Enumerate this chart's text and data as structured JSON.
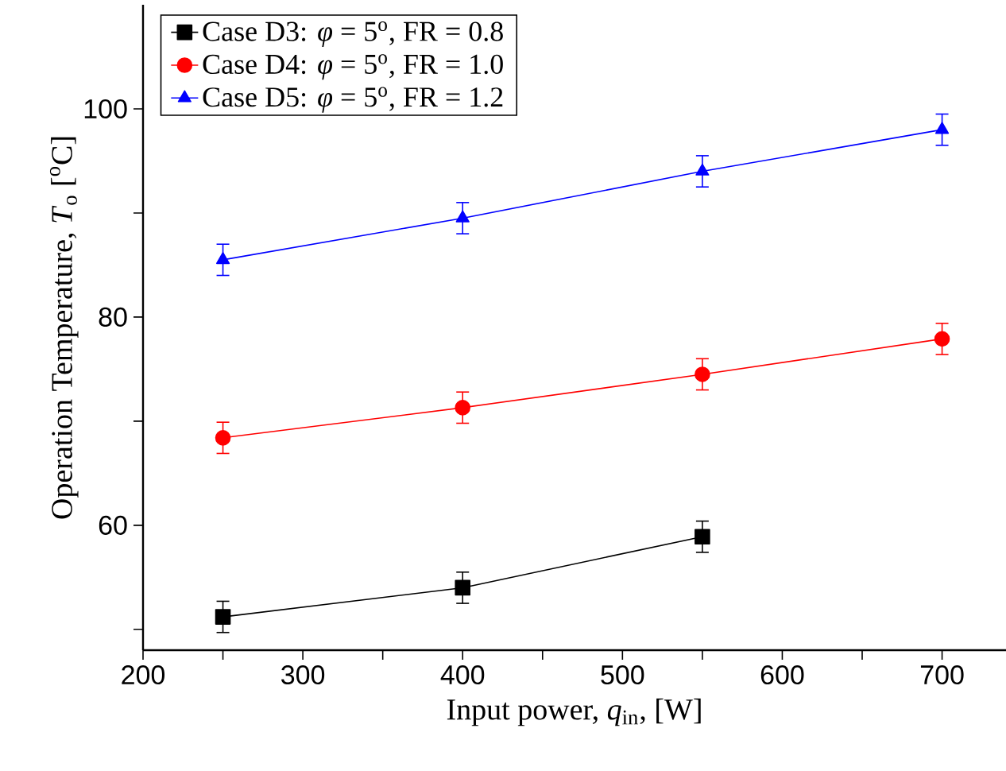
{
  "chart_data": {
    "type": "line",
    "xlabel": "Input power, *q*$_{in}$, [W]",
    "ylabel": "Operation Temperature, *T*$_{o}$ [$^{o}$C]",
    "xlim": [
      200,
      740
    ],
    "ylim": [
      48,
      110
    ],
    "xticks": [
      200,
      {
        "value": 250,
        "label": null
      },
      300,
      {
        "value": 350,
        "label": null
      },
      400,
      {
        "value": 450,
        "label": null
      },
      500,
      {
        "value": 550,
        "label": null
      },
      600,
      {
        "value": 650,
        "label": null
      },
      700
    ],
    "yticks": [
      {
        "value": 50,
        "label": null
      },
      60,
      {
        "value": 70,
        "label": null
      },
      80,
      {
        "value": 90,
        "label": null
      },
      100
    ],
    "legend": "top left",
    "grid": false,
    "line_style": "solid",
    "series": [
      {
        "name": "Case D3: *φ* = 5$^{o}$, FR = 0.8",
        "color": "#000000",
        "marker": "square",
        "x": [
          250,
          400,
          550
        ],
        "values": [
          51.2,
          54.0,
          58.9
        ],
        "errors": [
          1.5,
          1.5,
          1.5
        ]
      },
      {
        "name": "Case D4: *φ* = 5$^{o}$, FR = 1.0",
        "color": "#ff0000",
        "marker": "circle",
        "x": [
          250,
          400,
          550,
          700
        ],
        "values": [
          68.4,
          71.3,
          74.5,
          77.9
        ],
        "errors": [
          1.5,
          1.5,
          1.5,
          1.5
        ]
      },
      {
        "name": "Case D5: *φ* = 5$^{o}$, FR = 1.2",
        "color": "#0000ff",
        "marker": "triangle",
        "x": [
          250,
          400,
          550,
          700
        ],
        "values": [
          85.5,
          89.5,
          94.0,
          98.0
        ],
        "errors": [
          1.5,
          1.5,
          1.5,
          1.5
        ]
      }
    ]
  }
}
